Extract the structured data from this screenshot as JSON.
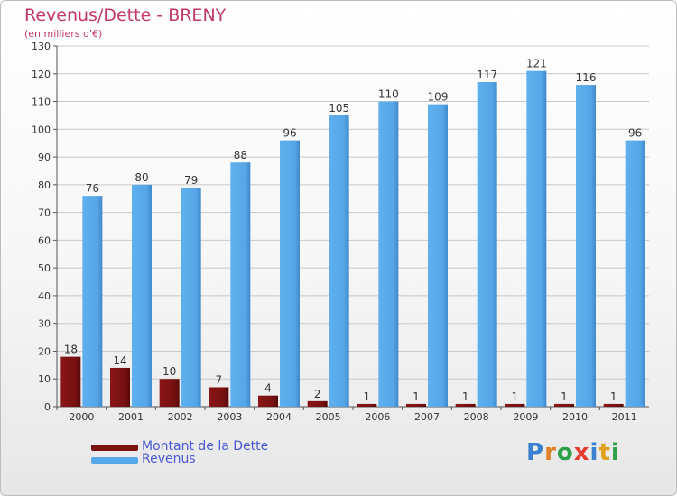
{
  "title": "Revenus/Dette - BRENY",
  "subtitle": "(en milliers d'€)",
  "colors": {
    "title": "#c2386a",
    "dette": "#7a1212",
    "revenus": "#57a8e8",
    "legend_text": "#4a58d6",
    "grid": "#c8c8c8"
  },
  "legend": {
    "position": "bottom-left",
    "items": [
      {
        "label": "Montant de la Dette",
        "color": "#7a1212"
      },
      {
        "label": "Revenus",
        "color": "#57a8e8"
      }
    ]
  },
  "logo": {
    "text": "Proxiti",
    "letter_colors": [
      "#3b7fd1",
      "#e0812a",
      "#2ea04a",
      "#e53a2d",
      "#3b7fd1",
      "#e0a21c",
      "#2ea04a"
    ]
  },
  "chart_data": {
    "type": "bar",
    "categories": [
      "2000",
      "2001",
      "2002",
      "2003",
      "2004",
      "2005",
      "2006",
      "2007",
      "2008",
      "2009",
      "2010",
      "2011"
    ],
    "series": [
      {
        "name": "Montant de la Dette",
        "values": [
          18,
          14,
          10,
          7,
          4,
          2,
          1,
          1,
          1,
          1,
          1,
          1
        ]
      },
      {
        "name": "Revenus",
        "values": [
          76,
          80,
          79,
          88,
          96,
          105,
          110,
          109,
          117,
          121,
          116,
          96
        ]
      }
    ],
    "ylim": [
      0,
      130
    ],
    "yticks": [
      0,
      10,
      20,
      30,
      40,
      50,
      60,
      70,
      80,
      90,
      100,
      110,
      120,
      130
    ],
    "grid": true,
    "data_labels": true
  }
}
